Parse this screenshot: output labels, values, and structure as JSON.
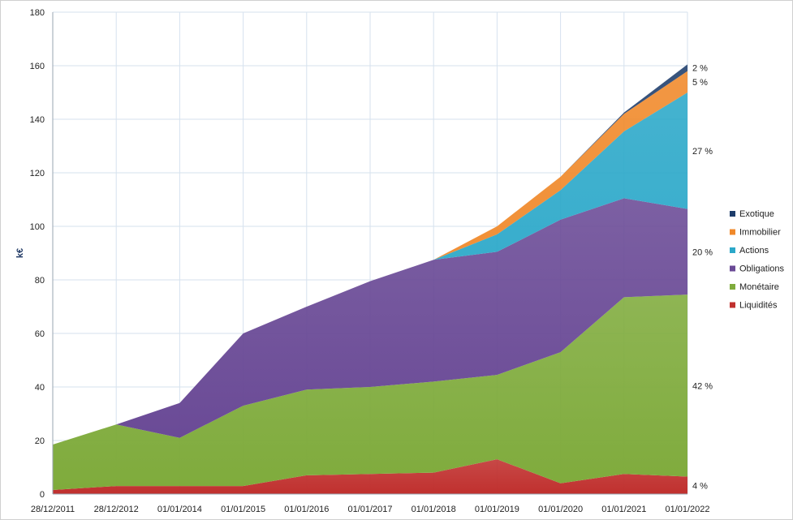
{
  "chart_data": {
    "type": "area",
    "stacked": true,
    "title": "",
    "xlabel": "",
    "ylabel": "k€",
    "ylim": [
      0,
      180
    ],
    "yticks": [
      0,
      20,
      40,
      60,
      80,
      100,
      120,
      140,
      160,
      180
    ],
    "grid": true,
    "legend_position": "right",
    "categories": [
      "28/12/2011",
      "28/12/2012",
      "01/01/2014",
      "01/01/2015",
      "01/01/2016",
      "01/01/2017",
      "01/01/2018",
      "01/01/2019",
      "01/01/2020",
      "01/01/2021",
      "01/01/2022"
    ],
    "series": [
      {
        "name": "Liquidités",
        "color": "#c0302e",
        "values": [
          1.5,
          3,
          3,
          3,
          7,
          7.5,
          8,
          13,
          4,
          7.5,
          6.5
        ]
      },
      {
        "name": "Monétaire",
        "color": "#7fab3c",
        "values": [
          17,
          23,
          18,
          30,
          32,
          32.5,
          34,
          31.5,
          49,
          66,
          68
        ]
      },
      {
        "name": "Obligations",
        "color": "#6a4a96",
        "values": [
          0,
          0,
          13,
          27,
          31,
          39.5,
          45.5,
          46,
          49.5,
          37,
          32
        ]
      },
      {
        "name": "Actions",
        "color": "#2ba8c9",
        "values": [
          0,
          0,
          0,
          0,
          0,
          0,
          0,
          6.5,
          11,
          25,
          43.5
        ]
      },
      {
        "name": "Immobilier",
        "color": "#f0892a",
        "values": [
          0,
          0,
          0,
          0,
          0,
          0,
          0,
          3,
          5,
          6.5,
          8
        ]
      },
      {
        "name": "Exotique",
        "color": "#1e3d6b",
        "values": [
          0,
          0,
          0,
          0,
          0,
          0,
          0,
          0,
          0,
          0.5,
          2.5
        ]
      }
    ],
    "end_labels": [
      {
        "series": "Liquidités",
        "text": "4 %"
      },
      {
        "series": "Monétaire",
        "text": "42 %"
      },
      {
        "series": "Obligations",
        "text": "20 %"
      },
      {
        "series": "Actions",
        "text": "27 %"
      },
      {
        "series": "Immobilier",
        "text": "5 %"
      },
      {
        "series": "Exotique",
        "text": "2 %"
      }
    ],
    "legend_order": [
      "Exotique",
      "Immobilier",
      "Actions",
      "Obligations",
      "Monétaire",
      "Liquidités"
    ]
  }
}
